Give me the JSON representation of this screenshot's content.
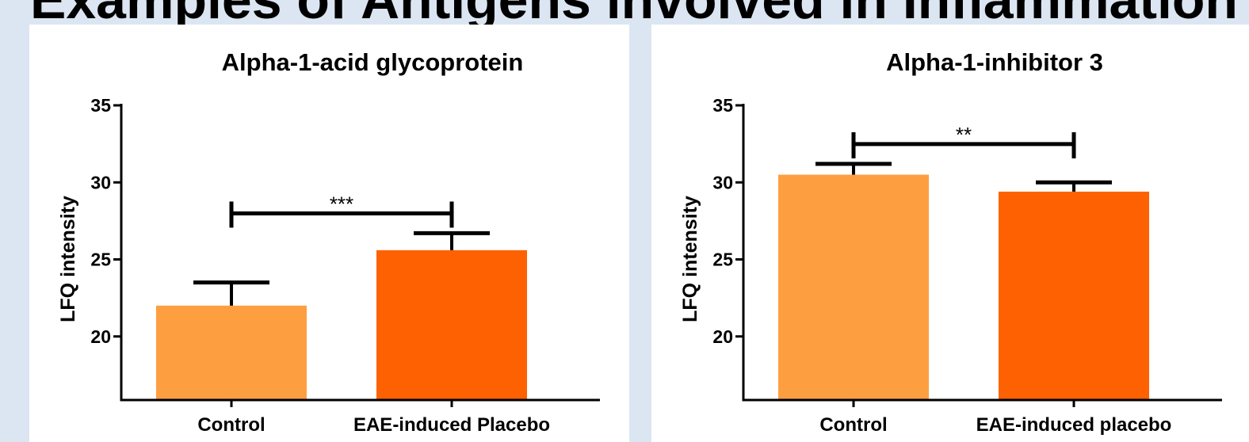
{
  "slide": {
    "title": "Examples of Antigens involved in Inflammation"
  },
  "colors": {
    "control": "#fd9f40",
    "eae": "#fe6102",
    "axis": "#000000",
    "background": "#dce6f2",
    "panel": "#ffffff"
  },
  "chart_data": [
    {
      "type": "bar",
      "title": "Alpha-1-acid glycoprotein",
      "ylabel": "LFQ intensity",
      "categories": [
        "Control",
        "EAE-induced Placebo"
      ],
      "values": [
        22.0,
        25.6
      ],
      "error_upper": [
        1.5,
        1.1
      ],
      "yticks": [
        "35",
        "30",
        "25",
        "20"
      ],
      "ylim": [
        16,
        35
      ],
      "significance": "***"
    },
    {
      "type": "bar",
      "title": "Alpha-1-inhibitor 3",
      "ylabel": "LFQ intensity",
      "categories": [
        "Control",
        "EAE-induced placebo"
      ],
      "values": [
        30.5,
        29.4
      ],
      "error_upper": [
        0.7,
        0.6
      ],
      "yticks": [
        "35",
        "30",
        "25",
        "20"
      ],
      "ylim": [
        16,
        35
      ],
      "significance": "**"
    }
  ]
}
